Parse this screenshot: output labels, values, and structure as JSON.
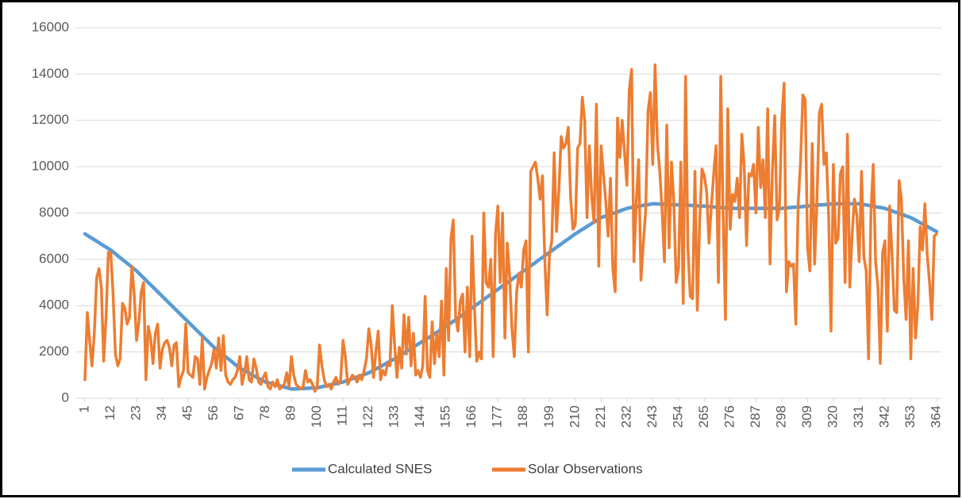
{
  "chart_data": {
    "type": "line",
    "x": [
      1,
      2,
      3,
      4,
      5,
      6,
      7,
      8,
      9,
      10,
      11,
      12,
      13,
      14,
      15,
      16,
      17,
      18,
      19,
      20,
      21,
      22,
      23,
      24,
      25,
      26,
      27,
      28,
      29,
      30,
      31,
      32,
      33,
      34,
      35,
      36,
      37,
      38,
      39,
      40,
      41,
      42,
      43,
      44,
      45,
      46,
      47,
      48,
      49,
      50,
      51,
      52,
      53,
      54,
      55,
      56,
      57,
      58,
      59,
      60,
      61,
      62,
      63,
      64,
      65,
      66,
      67,
      68,
      69,
      70,
      71,
      72,
      73,
      74,
      75,
      76,
      77,
      78,
      79,
      80,
      81,
      82,
      83,
      84,
      85,
      86,
      87,
      88,
      89,
      90,
      91,
      92,
      93,
      94,
      95,
      96,
      97,
      98,
      99,
      100,
      101,
      102,
      103,
      104,
      105,
      106,
      107,
      108,
      109,
      110,
      111,
      112,
      113,
      114,
      115,
      116,
      117,
      118,
      119,
      120,
      121,
      122,
      123,
      124,
      125,
      126,
      127,
      128,
      129,
      130,
      131,
      132,
      133,
      134,
      135,
      136,
      137,
      138,
      139,
      140,
      141,
      142,
      143,
      144,
      145,
      146,
      147,
      148,
      149,
      150,
      151,
      152,
      153,
      154,
      155,
      156,
      157,
      158,
      159,
      160,
      161,
      162,
      163,
      164,
      165,
      166,
      167,
      168,
      169,
      170,
      171,
      172,
      173,
      174,
      175,
      176,
      177,
      178,
      179,
      180,
      181,
      182,
      183,
      184,
      185,
      186,
      187,
      188,
      189,
      190,
      191,
      192,
      193,
      194,
      195,
      196,
      197,
      198,
      199,
      200,
      201,
      202,
      203,
      204,
      205,
      206,
      207,
      208,
      209,
      210,
      211,
      212,
      213,
      214,
      215,
      216,
      217,
      218,
      219,
      220,
      221,
      222,
      223,
      224,
      225,
      226,
      227,
      228,
      229,
      230,
      231,
      232,
      233,
      234,
      235,
      236,
      237,
      238,
      239,
      240,
      241,
      242,
      243,
      244,
      245,
      246,
      247,
      248,
      249,
      250,
      251,
      252,
      253,
      254,
      255,
      256,
      257,
      258,
      259,
      260,
      261,
      262,
      263,
      264,
      265,
      266,
      267,
      268,
      269,
      270,
      271,
      272,
      273,
      274,
      275,
      276,
      277,
      278,
      279,
      280,
      281,
      282,
      283,
      284,
      285,
      286,
      287,
      288,
      289,
      290,
      291,
      292,
      293,
      294,
      295,
      296,
      297,
      298,
      299,
      300,
      301,
      302,
      303,
      304,
      305,
      306,
      307,
      308,
      309,
      310,
      311,
      312,
      313,
      314,
      315,
      316,
      317,
      318,
      319,
      320,
      321,
      322,
      323,
      324,
      325,
      326,
      327,
      328,
      329,
      330,
      331,
      332,
      333,
      334,
      335,
      336,
      337,
      338,
      339,
      340,
      341,
      342,
      343,
      344,
      345,
      346,
      347,
      348,
      349,
      350,
      351,
      352,
      353,
      354,
      355,
      356,
      357,
      358,
      359,
      360,
      361,
      362,
      363,
      364
    ],
    "xlim": [
      1,
      364
    ],
    "xticks": [
      1,
      12,
      23,
      34,
      45,
      56,
      67,
      78,
      89,
      100,
      111,
      122,
      133,
      144,
      155,
      166,
      177,
      188,
      199,
      210,
      221,
      232,
      243,
      254,
      265,
      276,
      287,
      298,
      309,
      320,
      331,
      342,
      353,
      364
    ],
    "ylim": [
      0,
      16000
    ],
    "yticks": [
      0,
      2000,
      4000,
      6000,
      8000,
      10000,
      12000,
      14000,
      16000
    ],
    "grid": true,
    "legend": "bottom",
    "series": [
      {
        "name": "Calculated SNES",
        "color": "#5b9bd5",
        "values": [
          7100,
          7040,
          6970,
          6910,
          6850,
          6780,
          6720,
          6650,
          6590,
          6530,
          6460,
          6400,
          6320,
          6240,
          6150,
          6070,
          5990,
          5910,
          5830,
          5750,
          5660,
          5580,
          5500,
          5400,
          5300,
          5200,
          5100,
          5000,
          4900,
          4800,
          4700,
          4600,
          4500,
          4400,
          4300,
          4200,
          4100,
          4000,
          3900,
          3800,
          3700,
          3600,
          3500,
          3400,
          3300,
          3200,
          3100,
          3000,
          2900,
          2800,
          2700,
          2600,
          2500,
          2400,
          2300,
          2200,
          2120,
          2040,
          1950,
          1870,
          1790,
          1710,
          1630,
          1550,
          1460,
          1380,
          1300,
          1250,
          1190,
          1140,
          1080,
          1030,
          970,
          920,
          860,
          810,
          750,
          700,
          670,
          650,
          620,
          590,
          560,
          540,
          510,
          480,
          460,
          430,
          400,
          400,
          410,
          410,
          420,
          420,
          430,
          430,
          440,
          440,
          450,
          450,
          470,
          500,
          520,
          540,
          560,
          590,
          610,
          630,
          650,
          680,
          700,
          740,
          770,
          810,
          850,
          880,
          920,
          950,
          990,
          1030,
          1060,
          1100,
          1150,
          1210,
          1260,
          1320,
          1370,
          1430,
          1480,
          1540,
          1590,
          1650,
          1700,
          1760,
          1830,
          1890,
          1950,
          2020,
          2080,
          2150,
          2210,
          2270,
          2340,
          2400,
          2460,
          2530,
          2590,
          2650,
          2720,
          2780,
          2850,
          2910,
          2970,
          3040,
          3100,
          3170,
          3250,
          3320,
          3390,
          3460,
          3540,
          3610,
          3680,
          3750,
          3830,
          3900,
          3970,
          4050,
          4120,
          4190,
          4260,
          4340,
          4410,
          4480,
          4550,
          4630,
          4700,
          4770,
          4850,
          4920,
          4990,
          5060,
          5140,
          5210,
          5280,
          5350,
          5430,
          5500,
          5570,
          5650,
          5720,
          5790,
          5860,
          5940,
          6010,
          6080,
          6150,
          6230,
          6300,
          6370,
          6450,
          6520,
          6590,
          6660,
          6740,
          6810,
          6880,
          6950,
          7030,
          7100,
          7160,
          7230,
          7290,
          7350,
          7420,
          7480,
          7550,
          7610,
          7670,
          7740,
          7800,
          7840,
          7870,
          7910,
          7950,
          7980,
          8020,
          8050,
          8090,
          8130,
          8160,
          8200,
          8220,
          8240,
          8250,
          8270,
          8290,
          8310,
          8330,
          8350,
          8360,
          8380,
          8400,
          8400,
          8390,
          8390,
          8380,
          8380,
          8370,
          8370,
          8360,
          8360,
          8350,
          8350,
          8350,
          8340,
          8340,
          8330,
          8330,
          8320,
          8320,
          8310,
          8310,
          8300,
          8300,
          8290,
          8280,
          8270,
          8260,
          8250,
          8250,
          8240,
          8230,
          8220,
          8210,
          8200,
          8200,
          8200,
          8200,
          8200,
          8200,
          8200,
          8200,
          8200,
          8200,
          8200,
          8200,
          8200,
          8200,
          8200,
          8200,
          8200,
          8200,
          8200,
          8200,
          8200,
          8200,
          8200,
          8210,
          8220,
          8230,
          8240,
          8250,
          8250,
          8260,
          8270,
          8280,
          8290,
          8300,
          8310,
          8320,
          8330,
          8340,
          8350,
          8350,
          8360,
          8370,
          8380,
          8390,
          8400,
          8400,
          8400,
          8400,
          8400,
          8400,
          8400,
          8400,
          8400,
          8400,
          8400,
          8400,
          8380,
          8360,
          8350,
          8330,
          8310,
          8290,
          8270,
          8250,
          8240,
          8220,
          8200,
          8160,
          8130,
          8090,
          8050,
          8020,
          7980,
          7950,
          7910,
          7870,
          7840,
          7800,
          7750,
          7690,
          7640,
          7580,
          7530,
          7470,
          7420,
          7360,
          7310,
          7250,
          7200
        ]
      },
      {
        "name": "Solar Observations",
        "color": "#ed7d31",
        "values": [
          800,
          3700,
          2500,
          1400,
          2800,
          5200,
          5600,
          4800,
          1600,
          3500,
          6300,
          6300,
          4500,
          1900,
          1400,
          1700,
          4100,
          3900,
          3200,
          3500,
          5700,
          4500,
          2500,
          3300,
          4600,
          5000,
          800,
          3100,
          2600,
          1500,
          2800,
          3200,
          1300,
          2100,
          2400,
          2500,
          2200,
          1400,
          2300,
          2400,
          500,
          900,
          1200,
          3200,
          1100,
          1000,
          900,
          1800,
          1700,
          600,
          2600,
          400,
          900,
          1200,
          1500,
          2100,
          1300,
          2600,
          1200,
          2700,
          1000,
          700,
          600,
          800,
          900,
          1200,
          1800,
          600,
          1100,
          1800,
          800,
          700,
          1700,
          1300,
          700,
          600,
          900,
          1100,
          500,
          400,
          700,
          500,
          800,
          400,
          500,
          600,
          1100,
          500,
          1800,
          1000,
          600,
          500,
          400,
          500,
          1200,
          700,
          800,
          600,
          300,
          500,
          2300,
          1400,
          800,
          500,
          600,
          400,
          700,
          900,
          600,
          800,
          2500,
          1800,
          600,
          800,
          1000,
          900,
          700,
          1000,
          800,
          1200,
          1700,
          3000,
          2300,
          900,
          2000,
          2900,
          800,
          1200,
          1000,
          1500,
          1400,
          4000,
          2300,
          900,
          2200,
          1300,
          3600,
          1900,
          3500,
          1400,
          2800,
          1000,
          1200,
          900,
          1400,
          4400,
          1200,
          900,
          3300,
          1500,
          2800,
          1800,
          4200,
          1000,
          5600,
          2500,
          6900,
          7700,
          3500,
          2900,
          4200,
          4500,
          2000,
          4800,
          1800,
          7000,
          4000,
          1600,
          2000,
          1700,
          8000,
          5000,
          4800,
          6000,
          1800,
          7100,
          8300,
          5000,
          8000,
          2600,
          6700,
          5300,
          3000,
          1800,
          4600,
          5400,
          4800,
          6400,
          6800,
          2000,
          9800,
          10000,
          10200,
          9500,
          8600,
          9600,
          6000,
          3600,
          6200,
          6800,
          10600,
          7200,
          9000,
          11300,
          10800,
          11000,
          11700,
          8700,
          7300,
          7500,
          10800,
          11000,
          13000,
          12000,
          7800,
          10900,
          8700,
          7600,
          12700,
          5700,
          10900,
          9700,
          8500,
          7000,
          9500,
          5600,
          4600,
          12100,
          10400,
          12000,
          10600,
          9200,
          13300,
          14200,
          5900,
          8500,
          10300,
          5100,
          6700,
          8100,
          12400,
          13200,
          10100,
          14400,
          11000,
          9800,
          8100,
          5900,
          11800,
          6500,
          10200,
          8500,
          5000,
          5600,
          10200,
          4100,
          13900,
          6500,
          4400,
          4300,
          9800,
          3800,
          7600,
          9900,
          9600,
          8900,
          6700,
          8300,
          9700,
          10900,
          5000,
          13900,
          8000,
          3400,
          12500,
          7300,
          8800,
          8500,
          9500,
          7800,
          11400,
          10000,
          6600,
          9700,
          9600,
          10100,
          8000,
          11700,
          9100,
          10300,
          7800,
          12500,
          5800,
          9800,
          12200,
          7700,
          8200,
          12000,
          13600,
          4600,
          5900,
          5700,
          5800,
          3200,
          8400,
          10200,
          13100,
          12900,
          6500,
          5500,
          11000,
          5800,
          8500,
          12300,
          12700,
          10100,
          10600,
          7800,
          2900,
          10100,
          6700,
          6900,
          9700,
          10000,
          5000,
          11400,
          4800,
          7100,
          8600,
          7900,
          5900,
          9800,
          6100,
          5500,
          1700,
          8000,
          10100,
          5900,
          4800,
          1500,
          6300,
          6800,
          2900,
          8300,
          6200,
          3800,
          3700,
          9400,
          8600,
          5200,
          3400,
          6800,
          1700,
          5600,
          2600,
          4000,
          7400,
          6400,
          8400,
          6200,
          5000,
          3400,
          7000,
          7100
        ]
      }
    ]
  }
}
